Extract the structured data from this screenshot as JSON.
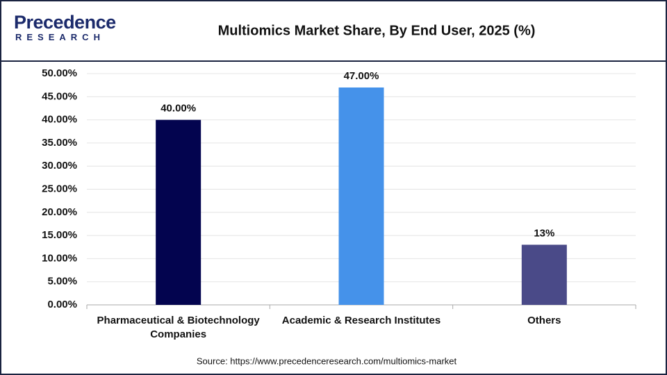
{
  "logo": {
    "name": "Precedence",
    "sub": "RESEARCH"
  },
  "chart_data": {
    "type": "bar",
    "title": "Multiomics Market Share, By End User, 2025 (%)",
    "categories": [
      "Pharmaceutical & Biotechnology Companies",
      "Academic & Research Institutes",
      "Others"
    ],
    "values": [
      40,
      47,
      13
    ],
    "value_labels": [
      "40.00%",
      "47.00%",
      "13%"
    ],
    "colors": [
      "#03044f",
      "#4592ea",
      "#4a4a88"
    ],
    "ylim": [
      0,
      50
    ],
    "yticks": [
      {
        "value": 0,
        "label": "0.00%"
      },
      {
        "value": 5,
        "label": "5.00%"
      },
      {
        "value": 10,
        "label": "10.00%"
      },
      {
        "value": 15,
        "label": "15.00%"
      },
      {
        "value": 20,
        "label": "20.00%"
      },
      {
        "value": 25,
        "label": "25.00%"
      },
      {
        "value": 30,
        "label": "30.00%"
      },
      {
        "value": 35,
        "label": "35.00%"
      },
      {
        "value": 40,
        "label": "40.00%"
      },
      {
        "value": 45,
        "label": "45.00%"
      },
      {
        "value": 50,
        "label": "50.00%"
      }
    ],
    "grid": true,
    "source": "Source: https://www.precedenceresearch.com/multiomics-market"
  }
}
